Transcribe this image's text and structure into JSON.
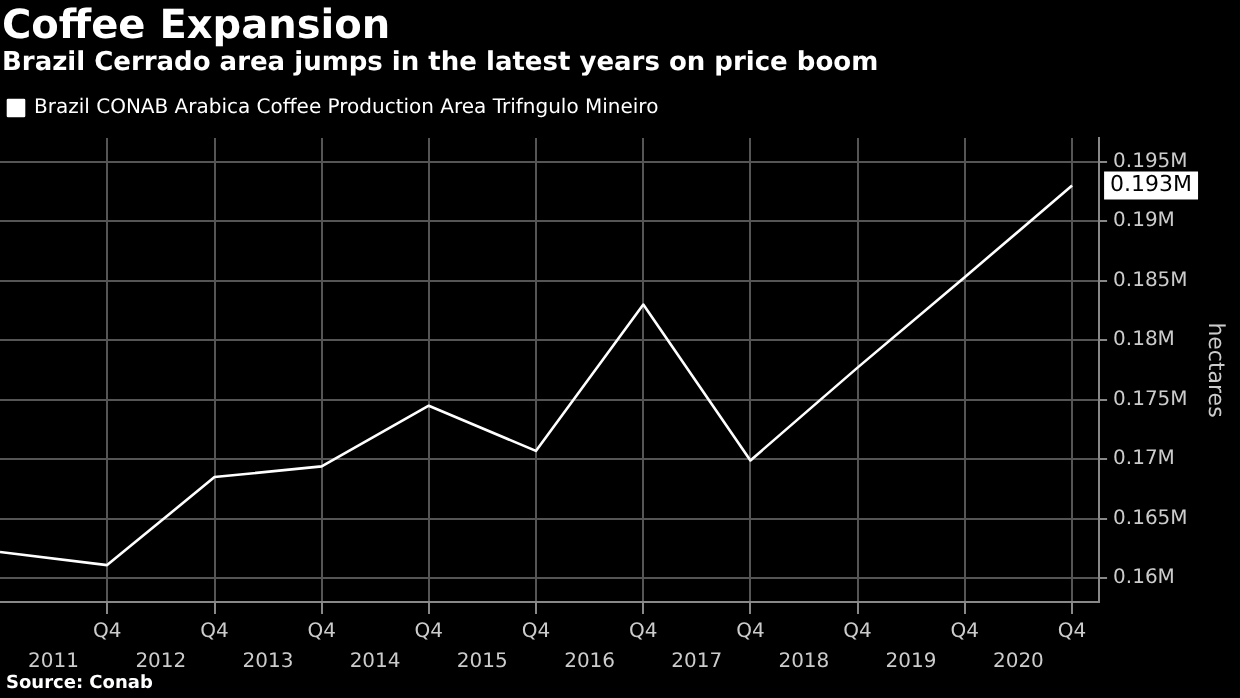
{
  "chart_data": {
    "type": "line",
    "title": "Coffee Expansion",
    "subtitle": "Brazil Cerrado area jumps in the latest years on price boom",
    "ylabel": "hectares",
    "x": [
      "2010-10-01",
      "2011-10-01",
      "2012-10-01",
      "2013-10-01",
      "2014-10-01",
      "2015-10-01",
      "2016-10-01",
      "2017-10-01",
      "2018-10-01",
      "2019-10-01",
      "2020-10-01"
    ],
    "series": [
      {
        "name": "Brazil CONAB Arabica Coffee Production Area Trifngulo Mineiro",
        "color": "#ffffff",
        "values": [
          0.1622,
          0.1611,
          0.1685,
          0.1694,
          0.1745,
          0.1707,
          0.183,
          0.1699,
          0.1777,
          0.1853,
          0.193
        ]
      }
    ],
    "xlim": [
      "2010-10-01",
      "2021-01-01"
    ],
    "xticks": [
      {
        "value": "2011-04-01",
        "label": "2011"
      },
      {
        "value": "2012-04-01",
        "label": "2012"
      },
      {
        "value": "2013-04-01",
        "label": "2013"
      },
      {
        "value": "2014-04-01",
        "label": "2014"
      },
      {
        "value": "2015-04-01",
        "label": "2015"
      },
      {
        "value": "2016-04-01",
        "label": "2016"
      },
      {
        "value": "2017-04-01",
        "label": "2017"
      },
      {
        "value": "2018-04-01",
        "label": "2018"
      },
      {
        "value": "2019-04-01",
        "label": "2019"
      },
      {
        "value": "2020-04-01",
        "label": "2020"
      }
    ],
    "x2lim": [
      "2010-10-01",
      "2021-01-01"
    ],
    "x2ticks": [
      {
        "value": "2011-10-01",
        "label": "Q4"
      },
      {
        "value": "2012-10-01",
        "label": "Q4"
      },
      {
        "value": "2013-10-01",
        "label": "Q4"
      },
      {
        "value": "2014-10-01",
        "label": "Q4"
      },
      {
        "value": "2015-10-01",
        "label": "Q4"
      },
      {
        "value": "2016-10-01",
        "label": "Q4"
      },
      {
        "value": "2017-10-01",
        "label": "Q4"
      },
      {
        "value": "2018-10-01",
        "label": "Q4"
      },
      {
        "value": "2019-10-01",
        "label": "Q4"
      },
      {
        "value": "2020-10-01",
        "label": "Q4"
      }
    ],
    "ylim": [
      0.158,
      0.197
    ],
    "yticks": [
      {
        "value": 0.16,
        "label": "0.16M"
      },
      {
        "value": 0.165,
        "label": "0.165M"
      },
      {
        "value": 0.17,
        "label": "0.17M"
      },
      {
        "value": 0.175,
        "label": "0.175M"
      },
      {
        "value": 0.18,
        "label": "0.18M"
      },
      {
        "value": 0.185,
        "label": "0.185M"
      },
      {
        "value": 0.19,
        "label": "0.19M"
      },
      {
        "value": 0.195,
        "label": "0.195M"
      }
    ],
    "annotations": [
      {
        "text": "0.193M",
        "x": "2020-10-01",
        "y": 0.193
      },
      "Source: Conab"
    ],
    "grid": true,
    "legend": "top left",
    "marker": "none",
    "line_style": "solid"
  }
}
